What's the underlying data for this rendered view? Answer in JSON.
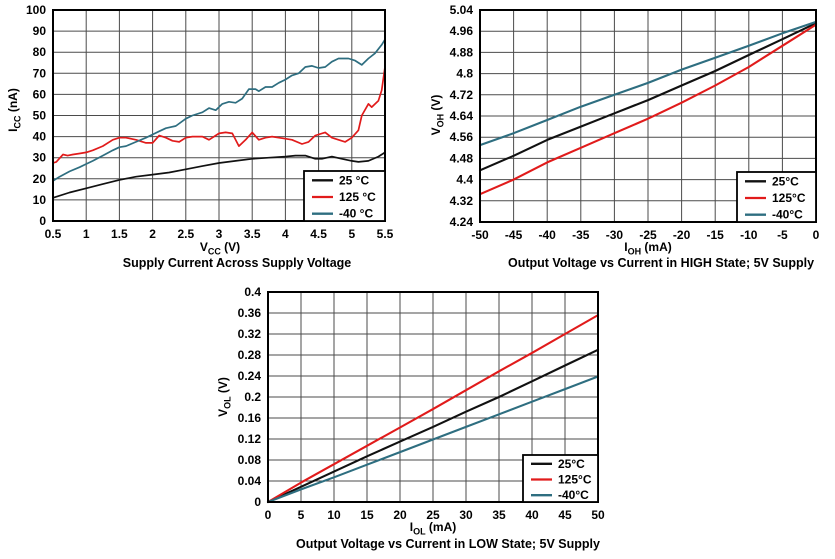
{
  "styles": {
    "background": "#ffffff",
    "frame_color": "#000000",
    "grid_color": "#4b4b4b",
    "text_color": "#000000",
    "legend_bg": "#ffffff",
    "series_black": "#111111",
    "series_red": "#e11b1b",
    "series_teal": "#2e6e80"
  },
  "chart_data": [
    {
      "type": "line",
      "title": "Supply Current Across Supply Voltage",
      "xlabel": {
        "base": "V",
        "sub": "CC",
        "unit": "(V)"
      },
      "ylabel": {
        "base": "I",
        "sub": "CC",
        "unit": "(nA)"
      },
      "xlim": [
        0.5,
        5.5
      ],
      "ylim": [
        0,
        100
      ],
      "x_tick_labels": [
        "0.5",
        "1",
        "1.5",
        "2",
        "2.5",
        "3",
        "3.5",
        "4",
        "4.5",
        "5",
        "5.5"
      ],
      "y_tick_labels": [
        "0",
        "10",
        "20",
        "30",
        "40",
        "50",
        "60",
        "70",
        "80",
        "90",
        "100"
      ],
      "grid": true,
      "legend_position": "bottom-right",
      "series": [
        {
          "key": "25c",
          "name": "25 °C",
          "color": "#111111",
          "points": [
            [
              0.5,
              11
            ],
            [
              0.75,
              13.5
            ],
            [
              1,
              15.5
            ],
            [
              1.25,
              17.5
            ],
            [
              1.5,
              19.5
            ],
            [
              1.75,
              21
            ],
            [
              2,
              22
            ],
            [
              2.25,
              23
            ],
            [
              2.5,
              24.5
            ],
            [
              2.75,
              26
            ],
            [
              3,
              27.5
            ],
            [
              3.25,
              28.5
            ],
            [
              3.5,
              29.5
            ],
            [
              3.75,
              30
            ],
            [
              4,
              30.5
            ],
            [
              4.15,
              31
            ],
            [
              4.3,
              31
            ],
            [
              4.45,
              29.5
            ],
            [
              4.55,
              29.5
            ],
            [
              4.7,
              30.5
            ],
            [
              4.85,
              29.5
            ],
            [
              5,
              28.5
            ],
            [
              5.1,
              28
            ],
            [
              5.25,
              28.5
            ],
            [
              5.4,
              30.5
            ],
            [
              5.5,
              32.5
            ]
          ]
        },
        {
          "key": "125c",
          "name": "125 °C",
          "color": "#e11b1b",
          "points": [
            [
              0.5,
              27.5
            ],
            [
              0.55,
              28
            ],
            [
              0.65,
              31.5
            ],
            [
              0.72,
              31
            ],
            [
              0.8,
              31.5
            ],
            [
              0.9,
              32
            ],
            [
              1,
              32.5
            ],
            [
              1.1,
              33.5
            ],
            [
              1.25,
              35.5
            ],
            [
              1.4,
              38.5
            ],
            [
              1.5,
              39.5
            ],
            [
              1.6,
              39.5
            ],
            [
              1.75,
              38.5
            ],
            [
              1.9,
              37
            ],
            [
              2,
              37
            ],
            [
              2.1,
              40.5
            ],
            [
              2.2,
              39.5
            ],
            [
              2.3,
              38
            ],
            [
              2.4,
              37.5
            ],
            [
              2.5,
              39.5
            ],
            [
              2.6,
              40
            ],
            [
              2.75,
              40
            ],
            [
              2.85,
              38.5
            ],
            [
              3,
              41.5
            ],
            [
              3.1,
              42
            ],
            [
              3.2,
              41.5
            ],
            [
              3.3,
              35.5
            ],
            [
              3.4,
              38.5
            ],
            [
              3.5,
              42
            ],
            [
              3.6,
              38.5
            ],
            [
              3.7,
              39.5
            ],
            [
              3.8,
              40
            ],
            [
              3.9,
              39.5
            ],
            [
              4,
              39
            ],
            [
              4.1,
              38.5
            ],
            [
              4.25,
              36.5
            ],
            [
              4.35,
              37.5
            ],
            [
              4.45,
              40.5
            ],
            [
              4.6,
              42
            ],
            [
              4.7,
              39.5
            ],
            [
              4.8,
              38.5
            ],
            [
              4.9,
              37.5
            ],
            [
              5,
              39.5
            ],
            [
              5.1,
              43
            ],
            [
              5.15,
              50
            ],
            [
              5.25,
              55.5
            ],
            [
              5.3,
              54
            ],
            [
              5.4,
              57
            ],
            [
              5.45,
              62
            ],
            [
              5.5,
              73
            ]
          ]
        },
        {
          "key": "m40c",
          "name": "-40 °C",
          "color": "#2e6e80",
          "points": [
            [
              0.5,
              19
            ],
            [
              0.6,
              21
            ],
            [
              0.75,
              23.5
            ],
            [
              0.9,
              25.5
            ],
            [
              1,
              27
            ],
            [
              1.1,
              28.5
            ],
            [
              1.25,
              31
            ],
            [
              1.4,
              33.5
            ],
            [
              1.5,
              35
            ],
            [
              1.6,
              35.5
            ],
            [
              1.75,
              37.5
            ],
            [
              1.9,
              39.5
            ],
            [
              2,
              41
            ],
            [
              2.1,
              42.5
            ],
            [
              2.2,
              44
            ],
            [
              2.35,
              45
            ],
            [
              2.5,
              48.5
            ],
            [
              2.6,
              50
            ],
            [
              2.75,
              51.5
            ],
            [
              2.85,
              53.5
            ],
            [
              2.95,
              52.5
            ],
            [
              3.05,
              55.5
            ],
            [
              3.15,
              56.5
            ],
            [
              3.25,
              56
            ],
            [
              3.35,
              58
            ],
            [
              3.45,
              62.5
            ],
            [
              3.55,
              62.5
            ],
            [
              3.6,
              61.5
            ],
            [
              3.7,
              63.5
            ],
            [
              3.8,
              63.5
            ],
            [
              3.9,
              65.5
            ],
            [
              4,
              67
            ],
            [
              4.1,
              69
            ],
            [
              4.2,
              70
            ],
            [
              4.3,
              73
            ],
            [
              4.4,
              73.5
            ],
            [
              4.5,
              72.5
            ],
            [
              4.6,
              73
            ],
            [
              4.7,
              75.5
            ],
            [
              4.8,
              77
            ],
            [
              4.95,
              77
            ],
            [
              5.05,
              76
            ],
            [
              5.15,
              74
            ],
            [
              5.25,
              77
            ],
            [
              5.35,
              79.5
            ],
            [
              5.45,
              83.5
            ],
            [
              5.5,
              86
            ]
          ]
        }
      ]
    },
    {
      "type": "line",
      "title": "Output Voltage vs Current in HIGH State; 5V Supply",
      "xlabel": {
        "base": "I",
        "sub": "OH",
        "unit": "(mA)"
      },
      "ylabel": {
        "base": "V",
        "sub": "OH",
        "unit": "(V)"
      },
      "xlim": [
        -50,
        0
      ],
      "ylim": [
        4.24,
        5.04
      ],
      "x_tick_labels": [
        "-50",
        "-45",
        "-40",
        "-35",
        "-30",
        "-25",
        "-20",
        "-15",
        "-10",
        "-5",
        "0"
      ],
      "y_tick_labels": [
        "4.24",
        "4.32",
        "4.4",
        "4.48",
        "4.56",
        "4.64",
        "4.72",
        "4.8",
        "4.88",
        "4.96",
        "5.04"
      ],
      "grid": true,
      "legend_position": "bottom-right",
      "series": [
        {
          "key": "25c",
          "name": "25°C",
          "color": "#111111",
          "points": [
            [
              -50,
              4.435
            ],
            [
              -45,
              4.49
            ],
            [
              -40,
              4.55
            ],
            [
              -35,
              4.6
            ],
            [
              -30,
              4.65
            ],
            [
              -25,
              4.7
            ],
            [
              -20,
              4.755
            ],
            [
              -15,
              4.81
            ],
            [
              -10,
              4.87
            ],
            [
              -5,
              4.93
            ],
            [
              0,
              4.99
            ]
          ]
        },
        {
          "key": "125c",
          "name": "125°C",
          "color": "#e11b1b",
          "points": [
            [
              -50,
              4.345
            ],
            [
              -45,
              4.4
            ],
            [
              -40,
              4.465
            ],
            [
              -35,
              4.52
            ],
            [
              -30,
              4.575
            ],
            [
              -25,
              4.63
            ],
            [
              -20,
              4.69
            ],
            [
              -15,
              4.755
            ],
            [
              -10,
              4.825
            ],
            [
              -5,
              4.905
            ],
            [
              0,
              4.985
            ]
          ]
        },
        {
          "key": "m40c",
          "name": "-40°C",
          "color": "#2e6e80",
          "points": [
            [
              -50,
              4.53
            ],
            [
              -45,
              4.575
            ],
            [
              -40,
              4.625
            ],
            [
              -35,
              4.675
            ],
            [
              -30,
              4.72
            ],
            [
              -25,
              4.765
            ],
            [
              -20,
              4.815
            ],
            [
              -15,
              4.86
            ],
            [
              -10,
              4.905
            ],
            [
              -5,
              4.952
            ],
            [
              0,
              4.995
            ]
          ]
        }
      ]
    },
    {
      "type": "line",
      "title": "Output Voltage vs Current in LOW State; 5V Supply",
      "xlabel": {
        "base": "I",
        "sub": "OL",
        "unit": "(mA)"
      },
      "ylabel": {
        "base": "V",
        "sub": "OL",
        "unit": "(V)"
      },
      "xlim": [
        0,
        50
      ],
      "ylim": [
        0,
        0.4
      ],
      "x_tick_labels": [
        "0",
        "5",
        "10",
        "15",
        "20",
        "25",
        "30",
        "35",
        "40",
        "45",
        "50"
      ],
      "y_tick_labels": [
        "0",
        "0.04",
        "0.08",
        "0.12",
        "0.16",
        "0.2",
        "0.24",
        "0.28",
        "0.32",
        "0.36",
        "0.4"
      ],
      "grid": true,
      "legend_position": "bottom-right",
      "series": [
        {
          "key": "25c",
          "name": "25°C",
          "color": "#111111",
          "points": [
            [
              0,
              0
            ],
            [
              5,
              0.029
            ],
            [
              10,
              0.058
            ],
            [
              15,
              0.087
            ],
            [
              20,
              0.115
            ],
            [
              25,
              0.143
            ],
            [
              30,
              0.172
            ],
            [
              35,
              0.2
            ],
            [
              40,
              0.23
            ],
            [
              45,
              0.26
            ],
            [
              50,
              0.29
            ]
          ]
        },
        {
          "key": "125c",
          "name": "125°C",
          "color": "#e11b1b",
          "points": [
            [
              0,
              0
            ],
            [
              5,
              0.037
            ],
            [
              10,
              0.072
            ],
            [
              15,
              0.107
            ],
            [
              20,
              0.142
            ],
            [
              25,
              0.177
            ],
            [
              30,
              0.213
            ],
            [
              35,
              0.249
            ],
            [
              40,
              0.284
            ],
            [
              45,
              0.32
            ],
            [
              50,
              0.356
            ]
          ]
        },
        {
          "key": "m40c",
          "name": "-40°C",
          "color": "#2e6e80",
          "points": [
            [
              0,
              0
            ],
            [
              5,
              0.024
            ],
            [
              10,
              0.047
            ],
            [
              15,
              0.071
            ],
            [
              20,
              0.095
            ],
            [
              25,
              0.119
            ],
            [
              30,
              0.143
            ],
            [
              35,
              0.167
            ],
            [
              40,
              0.191
            ],
            [
              45,
              0.215
            ],
            [
              50,
              0.239
            ]
          ]
        }
      ]
    }
  ]
}
